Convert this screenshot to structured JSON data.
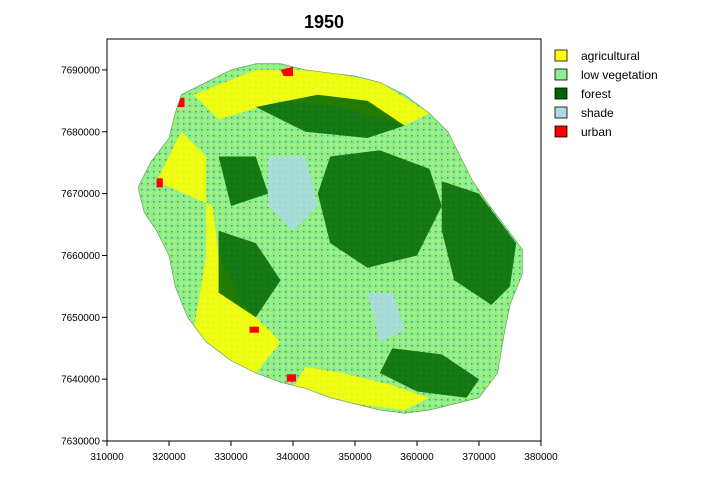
{
  "map": {
    "title": "1950",
    "xlim": [
      310000,
      380000
    ],
    "ylim": [
      7630000,
      7695000
    ],
    "x_ticks": [
      {
        "value": 310000,
        "label": "310000"
      },
      {
        "value": 320000,
        "label": "320000"
      },
      {
        "value": 330000,
        "label": "330000"
      },
      {
        "value": 340000,
        "label": "340000"
      },
      {
        "value": 350000,
        "label": "350000"
      },
      {
        "value": 360000,
        "label": "360000"
      },
      {
        "value": 370000,
        "label": "370000"
      },
      {
        "value": 380000,
        "label": "380000"
      }
    ],
    "y_ticks": [
      {
        "value": 7630000,
        "label": "7630000"
      },
      {
        "value": 7640000,
        "label": "7640000"
      },
      {
        "value": 7650000,
        "label": "7650000"
      },
      {
        "value": 7660000,
        "label": "7660000"
      },
      {
        "value": 7670000,
        "label": "7670000"
      },
      {
        "value": 7680000,
        "label": "7680000"
      },
      {
        "value": 7690000,
        "label": "7690000"
      }
    ],
    "legend": [
      {
        "label": "agricultural",
        "color": "#ffff00"
      },
      {
        "label": "low vegetation",
        "color": "#90ee90"
      },
      {
        "label": "forest",
        "color": "#006400"
      },
      {
        "label": "shade",
        "color": "#add8e6"
      },
      {
        "label": "urban",
        "color": "#ff0000"
      }
    ],
    "island_outline": [
      [
        322000,
        7686000
      ],
      [
        326000,
        7688000
      ],
      [
        330000,
        7690000
      ],
      [
        334000,
        7691000
      ],
      [
        338000,
        7691000
      ],
      [
        342000,
        7690000
      ],
      [
        346000,
        7689500
      ],
      [
        350000,
        7689000
      ],
      [
        354000,
        7688000
      ],
      [
        358000,
        7686000
      ],
      [
        362000,
        7683000
      ],
      [
        365000,
        7680000
      ],
      [
        367000,
        7676000
      ],
      [
        369000,
        7672000
      ],
      [
        371000,
        7669000
      ],
      [
        374000,
        7665000
      ],
      [
        377000,
        7661000
      ],
      [
        377000,
        7657000
      ],
      [
        375000,
        7652000
      ],
      [
        374000,
        7647000
      ],
      [
        373000,
        7641000
      ],
      [
        370000,
        7637000
      ],
      [
        366000,
        7636000
      ],
      [
        362000,
        7635000
      ],
      [
        358000,
        7634500
      ],
      [
        354000,
        7635000
      ],
      [
        350000,
        7636000
      ],
      [
        346000,
        7637000
      ],
      [
        342000,
        7638500
      ],
      [
        338000,
        7639500
      ],
      [
        334000,
        7641000
      ],
      [
        330000,
        7643000
      ],
      [
        326000,
        7646000
      ],
      [
        323000,
        7650000
      ],
      [
        321000,
        7655000
      ],
      [
        320000,
        7660000
      ],
      [
        318000,
        7664000
      ],
      [
        316000,
        7667000
      ],
      [
        315000,
        7671000
      ],
      [
        317000,
        7675000
      ],
      [
        320000,
        7679000
      ],
      [
        321000,
        7683000
      ]
    ],
    "zones": [
      {
        "class": "agricultural",
        "polygon": [
          [
            324000,
            7686000
          ],
          [
            334000,
            7690000
          ],
          [
            344000,
            7690000
          ],
          [
            354000,
            7688000
          ],
          [
            362000,
            7683000
          ],
          [
            358000,
            7681000
          ],
          [
            348000,
            7684000
          ],
          [
            338000,
            7685000
          ],
          [
            328000,
            7682000
          ]
        ]
      },
      {
        "class": "agricultural",
        "polygon": [
          [
            318000,
            7672000
          ],
          [
            322000,
            7680000
          ],
          [
            326000,
            7676000
          ],
          [
            326000,
            7660000
          ],
          [
            324000,
            7648000
          ],
          [
            328000,
            7643000
          ],
          [
            334000,
            7641000
          ],
          [
            338000,
            7646000
          ],
          [
            332000,
            7652000
          ],
          [
            328000,
            7660000
          ],
          [
            327000,
            7668000
          ]
        ]
      },
      {
        "class": "agricultural",
        "polygon": [
          [
            340000,
            7638500
          ],
          [
            350000,
            7636000
          ],
          [
            358000,
            7635000
          ],
          [
            362000,
            7637000
          ],
          [
            356000,
            7639000
          ],
          [
            348000,
            7641000
          ],
          [
            342000,
            7642000
          ]
        ]
      },
      {
        "class": "forest",
        "polygon": [
          [
            334000,
            7684000
          ],
          [
            344000,
            7686000
          ],
          [
            352000,
            7685000
          ],
          [
            358000,
            7681000
          ],
          [
            352000,
            7679000
          ],
          [
            342000,
            7680000
          ]
        ]
      },
      {
        "class": "forest",
        "polygon": [
          [
            346000,
            7676000
          ],
          [
            354000,
            7677000
          ],
          [
            362000,
            7674000
          ],
          [
            364000,
            7668000
          ],
          [
            360000,
            7660000
          ],
          [
            352000,
            7658000
          ],
          [
            346000,
            7662000
          ],
          [
            344000,
            7670000
          ]
        ]
      },
      {
        "class": "forest",
        "polygon": [
          [
            364000,
            7672000
          ],
          [
            370000,
            7670000
          ],
          [
            376000,
            7662000
          ],
          [
            375000,
            7655000
          ],
          [
            372000,
            7652000
          ],
          [
            366000,
            7656000
          ],
          [
            364000,
            7664000
          ]
        ]
      },
      {
        "class": "forest",
        "polygon": [
          [
            328000,
            7664000
          ],
          [
            334000,
            7662000
          ],
          [
            338000,
            7656000
          ],
          [
            334000,
            7650000
          ],
          [
            328000,
            7654000
          ]
        ]
      },
      {
        "class": "forest",
        "polygon": [
          [
            356000,
            7645000
          ],
          [
            364000,
            7644000
          ],
          [
            370000,
            7640000
          ],
          [
            368000,
            7637000
          ],
          [
            360000,
            7638000
          ],
          [
            354000,
            7641000
          ]
        ]
      },
      {
        "class": "forest",
        "polygon": [
          [
            328000,
            7676000
          ],
          [
            334000,
            7676000
          ],
          [
            336000,
            7670000
          ],
          [
            330000,
            7668000
          ]
        ]
      },
      {
        "class": "shade",
        "polygon": [
          [
            336000,
            7676000
          ],
          [
            342000,
            7676000
          ],
          [
            344000,
            7668000
          ],
          [
            340000,
            7664000
          ],
          [
            336000,
            7668000
          ]
        ]
      },
      {
        "class": "shade",
        "polygon": [
          [
            352000,
            7654000
          ],
          [
            356000,
            7654000
          ],
          [
            358000,
            7648000
          ],
          [
            354000,
            7646000
          ]
        ]
      },
      {
        "class": "urban",
        "polygon": [
          [
            338000,
            7690000
          ],
          [
            340000,
            7690500
          ],
          [
            340000,
            7689000
          ],
          [
            338500,
            7689000
          ]
        ]
      },
      {
        "class": "urban",
        "polygon": [
          [
            321000,
            7685500
          ],
          [
            322500,
            7685500
          ],
          [
            322500,
            7684000
          ],
          [
            321000,
            7684000
          ]
        ]
      },
      {
        "class": "urban",
        "polygon": [
          [
            339000,
            7640800
          ],
          [
            340500,
            7640800
          ],
          [
            340500,
            7639600
          ],
          [
            339000,
            7639600
          ]
        ]
      },
      {
        "class": "urban",
        "polygon": [
          [
            318000,
            7672500
          ],
          [
            319000,
            7672500
          ],
          [
            319000,
            7671000
          ],
          [
            318000,
            7671000
          ]
        ]
      },
      {
        "class": "urban",
        "polygon": [
          [
            333000,
            7648500
          ],
          [
            334500,
            7648500
          ],
          [
            334500,
            7647500
          ],
          [
            333000,
            7647500
          ]
        ]
      }
    ]
  }
}
